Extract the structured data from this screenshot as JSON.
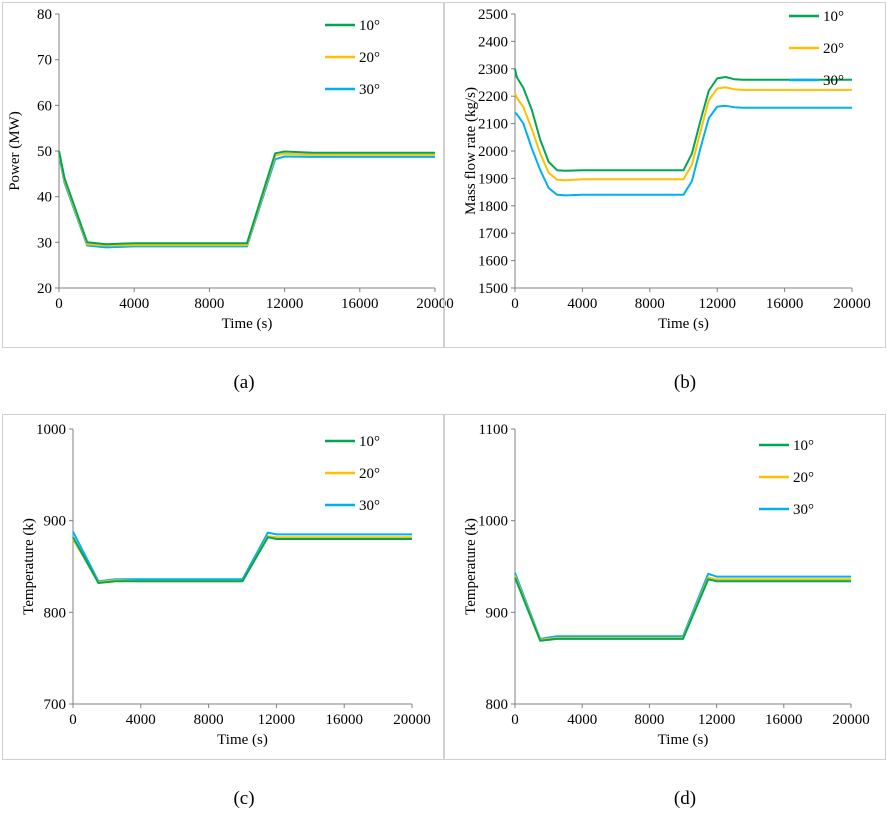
{
  "chart_data": [
    {
      "id": "a",
      "type": "line",
      "caption": "(a)",
      "xlabel": "Time (s)",
      "ylabel": "Power (MW)",
      "xlim": [
        0,
        20000
      ],
      "ylim": [
        20,
        80
      ],
      "xticks": [
        0,
        4000,
        8000,
        12000,
        16000,
        20000
      ],
      "yticks": [
        20,
        30,
        40,
        50,
        60,
        70,
        80
      ],
      "xtick_labels": [
        "0",
        "4000",
        "8000",
        "12000",
        "16000",
        "20000"
      ],
      "ytick_labels": [
        "20",
        "30",
        "40",
        "50",
        "60",
        "70",
        "80"
      ],
      "legend": "top-right",
      "series": [
        {
          "name": "10°",
          "color": "#00a651",
          "x": [
            0,
            300,
            1500,
            2500,
            4000,
            10000,
            11500,
            12000,
            13500,
            20000
          ],
          "y": [
            50,
            44,
            30,
            29.6,
            29.8,
            29.8,
            49.5,
            49.9,
            49.6,
            49.6
          ]
        },
        {
          "name": "20°",
          "color": "#ffc000",
          "x": [
            0,
            300,
            1500,
            2500,
            4000,
            10000,
            11500,
            12000,
            13500,
            20000
          ],
          "y": [
            49.5,
            43.5,
            29.6,
            29.3,
            29.4,
            29.4,
            49.0,
            49.4,
            49.2,
            49.2
          ]
        },
        {
          "name": "30°",
          "color": "#00b0f0",
          "x": [
            0,
            300,
            1500,
            2500,
            4000,
            10000,
            11500,
            12000,
            13500,
            20000
          ],
          "y": [
            49,
            43,
            29.3,
            28.9,
            29.1,
            29.1,
            48.2,
            48.8,
            48.7,
            48.7
          ]
        }
      ]
    },
    {
      "id": "b",
      "type": "line",
      "caption": "(b)",
      "xlabel": "Time (s)",
      "ylabel": "Mass flow rate (kg/s)",
      "xlim": [
        0,
        20000
      ],
      "ylim": [
        1500,
        2500
      ],
      "xticks": [
        0,
        4000,
        8000,
        12000,
        16000,
        20000
      ],
      "yticks": [
        1500,
        1600,
        1700,
        1800,
        1900,
        2000,
        2100,
        2200,
        2300,
        2400,
        2500
      ],
      "xtick_labels": [
        "0",
        "4000",
        "8000",
        "12000",
        "16000",
        "20000"
      ],
      "ytick_labels": [
        "1500",
        "1600",
        "1700",
        "1800",
        "1900",
        "2000",
        "2100",
        "2200",
        "2300",
        "2400",
        "2500"
      ],
      "legend": "top-right",
      "series": [
        {
          "name": "10°",
          "color": "#00a651",
          "x": [
            0,
            100,
            500,
            1000,
            1500,
            2000,
            2500,
            3000,
            4000,
            10000,
            10500,
            11000,
            11500,
            12000,
            12500,
            13000,
            13500,
            20000
          ],
          "y": [
            2300,
            2270,
            2230,
            2150,
            2040,
            1960,
            1930,
            1928,
            1930,
            1930,
            1990,
            2110,
            2220,
            2265,
            2270,
            2262,
            2260,
            2260
          ]
        },
        {
          "name": "20°",
          "color": "#ffc000",
          "x": [
            0,
            100,
            500,
            1000,
            1500,
            2000,
            2500,
            3000,
            4000,
            10000,
            10500,
            11000,
            11500,
            12000,
            12500,
            13000,
            13500,
            20000
          ],
          "y": [
            2210,
            2195,
            2160,
            2080,
            1990,
            1920,
            1895,
            1893,
            1897,
            1897,
            1950,
            2070,
            2185,
            2228,
            2232,
            2225,
            2223,
            2223
          ]
        },
        {
          "name": "30°",
          "color": "#00b0f0",
          "x": [
            0,
            100,
            500,
            1000,
            1500,
            2000,
            2500,
            3000,
            4000,
            10000,
            10500,
            11000,
            11500,
            12000,
            12500,
            13000,
            13500,
            20000
          ],
          "y": [
            2140,
            2135,
            2100,
            2010,
            1930,
            1865,
            1840,
            1838,
            1840,
            1840,
            1890,
            2010,
            2120,
            2162,
            2165,
            2160,
            2158,
            2158
          ]
        }
      ]
    },
    {
      "id": "c",
      "type": "line",
      "caption": "(c)",
      "xlabel": "Time (s)",
      "ylabel": "Temperature (k)",
      "xlim": [
        0,
        20000
      ],
      "ylim": [
        700,
        1000
      ],
      "xticks": [
        0,
        4000,
        8000,
        12000,
        16000,
        20000
      ],
      "yticks": [
        700,
        800,
        900,
        1000
      ],
      "xtick_labels": [
        "0",
        "4000",
        "8000",
        "12000",
        "16000",
        "20000"
      ],
      "ytick_labels": [
        "700",
        "800",
        "900",
        "1000"
      ],
      "legend": "top-right",
      "series": [
        {
          "name": "10°",
          "color": "#00a651",
          "x": [
            0,
            1500,
            2500,
            4000,
            10000,
            11500,
            12000,
            13000,
            20000
          ],
          "y": [
            882,
            832,
            834,
            834,
            834,
            882,
            880,
            880,
            880
          ]
        },
        {
          "name": "20°",
          "color": "#ffc000",
          "x": [
            0,
            1500,
            2500,
            4000,
            10000,
            11500,
            12000,
            13000,
            20000
          ],
          "y": [
            880,
            833,
            835,
            834,
            834,
            883,
            882,
            882,
            882
          ]
        },
        {
          "name": "30°",
          "color": "#00b0f0",
          "x": [
            0,
            1500,
            2500,
            4000,
            10000,
            11500,
            12000,
            13000,
            20000
          ],
          "y": [
            888,
            834,
            836,
            836,
            836,
            887,
            885,
            885,
            885
          ]
        }
      ]
    },
    {
      "id": "d",
      "type": "line",
      "caption": "(d)",
      "xlabel": "Time (s)",
      "ylabel": "Temperature (k)",
      "xlim": [
        0,
        20000
      ],
      "ylim": [
        800,
        1100
      ],
      "xticks": [
        0,
        4000,
        8000,
        12000,
        16000,
        20000
      ],
      "yticks": [
        800,
        900,
        1000,
        1100
      ],
      "xtick_labels": [
        "0",
        "4000",
        "8000",
        "12000",
        "16000",
        "20000"
      ],
      "ytick_labels": [
        "800",
        "900",
        "1000",
        "1100"
      ],
      "legend": "top-right",
      "series": [
        {
          "name": "10°",
          "color": "#00a651",
          "x": [
            0,
            1500,
            2500,
            4000,
            10000,
            11500,
            12000,
            13000,
            20000
          ],
          "y": [
            938,
            869,
            871,
            871,
            871,
            936,
            934,
            934,
            934
          ]
        },
        {
          "name": "20°",
          "color": "#ffc000",
          "x": [
            0,
            1500,
            2500,
            4000,
            10000,
            11500,
            12000,
            13000,
            20000
          ],
          "y": [
            940,
            870,
            872,
            872,
            872,
            938,
            936,
            936,
            936
          ]
        },
        {
          "name": "30°",
          "color": "#00b0f0",
          "x": [
            0,
            1500,
            2500,
            4000,
            10000,
            11500,
            12000,
            13000,
            20000
          ],
          "y": [
            943,
            871,
            874,
            874,
            874,
            942,
            939,
            939,
            939
          ]
        }
      ]
    }
  ]
}
